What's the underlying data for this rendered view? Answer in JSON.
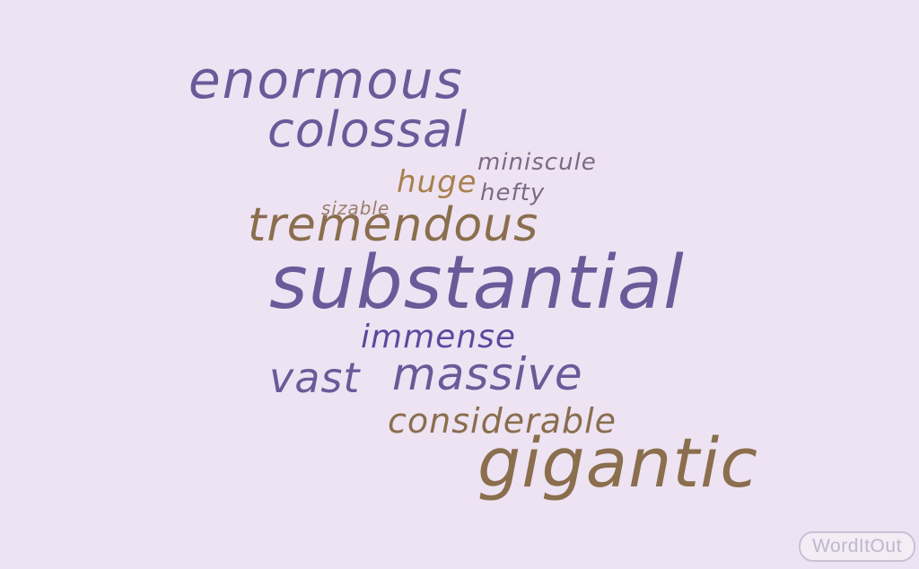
{
  "background_color": "#EEE3F2",
  "words": {
    "enormous": "enormous",
    "colossal": "colossal",
    "miniscule": "miniscule",
    "huge": "huge",
    "hefty": "hefty",
    "sizable": "sizable",
    "tremendous": "tremendous",
    "substantial": "substantial",
    "immense": "immense",
    "vast": "vast",
    "massive": "massive",
    "considerable": "considerable",
    "gigantic": "gigantic"
  },
  "colors": {
    "purple": "#6A5A99",
    "blue_purple": "#5A4A9E",
    "brown": "#8A6E4E",
    "gold": "#A8804E",
    "mauve": "#7D6A86"
  },
  "logo": {
    "text": "WordItOut"
  }
}
